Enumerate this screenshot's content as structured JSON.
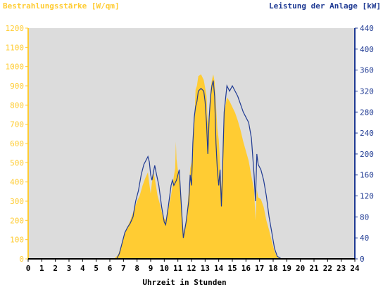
{
  "colors": {
    "background": "#ffffff",
    "plot_background": "#dcdcdc",
    "irradiance": "#ffcc33",
    "power": "#1f3a93",
    "axis_left": "#ffcc33",
    "axis_right": "#1f3a93",
    "axis_bottom": "#000000"
  },
  "chart_data": {
    "type": "area",
    "title_left": "Bestrahlungsstärke [W/qm]",
    "title_right": "Leistung der Anlage [kW]",
    "xlabel": "Uhrzeit in Stunden",
    "xlim": [
      0,
      24
    ],
    "x_ticks": [
      0,
      1,
      2,
      3,
      4,
      5,
      6,
      7,
      8,
      9,
      10,
      11,
      12,
      13,
      14,
      15,
      16,
      17,
      18,
      19,
      20,
      21,
      22,
      23,
      24
    ],
    "y_left": {
      "lim": [
        0,
        1200
      ],
      "ticks": [
        0,
        100,
        200,
        300,
        400,
        500,
        600,
        700,
        800,
        900,
        1000,
        1100,
        1200
      ]
    },
    "y_right": {
      "lim": [
        0,
        440
      ],
      "ticks": [
        0,
        40,
        80,
        120,
        160,
        200,
        240,
        280,
        320,
        360,
        400,
        440
      ]
    },
    "grid": false,
    "series": [
      {
        "axis": "left",
        "style": "area",
        "points": [
          [
            0,
            0
          ],
          [
            6.3,
            0
          ],
          [
            6.6,
            20
          ],
          [
            6.8,
            60
          ],
          [
            7.0,
            110
          ],
          [
            7.2,
            150
          ],
          [
            7.5,
            200
          ],
          [
            7.8,
            260
          ],
          [
            8.0,
            300
          ],
          [
            8.2,
            330
          ],
          [
            8.4,
            380
          ],
          [
            8.6,
            420
          ],
          [
            8.8,
            450
          ],
          [
            8.9,
            390
          ],
          [
            9.0,
            340
          ],
          [
            9.1,
            400
          ],
          [
            9.2,
            450
          ],
          [
            9.3,
            420
          ],
          [
            9.5,
            330
          ],
          [
            9.7,
            280
          ],
          [
            9.9,
            220
          ],
          [
            10.1,
            200
          ],
          [
            10.3,
            260
          ],
          [
            10.5,
            330
          ],
          [
            10.6,
            380
          ],
          [
            10.7,
            430
          ],
          [
            10.8,
            470
          ],
          [
            10.85,
            610
          ],
          [
            10.9,
            520
          ],
          [
            11.0,
            460
          ],
          [
            11.1,
            420
          ],
          [
            11.2,
            360
          ],
          [
            11.4,
            130
          ],
          [
            11.6,
            200
          ],
          [
            11.8,
            350
          ],
          [
            11.9,
            470
          ],
          [
            12.0,
            500
          ],
          [
            12.1,
            560
          ],
          [
            12.2,
            700
          ],
          [
            12.3,
            880
          ],
          [
            12.4,
            900
          ],
          [
            12.5,
            950
          ],
          [
            12.7,
            960
          ],
          [
            12.9,
            930
          ],
          [
            13.1,
            850
          ],
          [
            13.2,
            700
          ],
          [
            13.3,
            750
          ],
          [
            13.4,
            880
          ],
          [
            13.5,
            930
          ],
          [
            13.6,
            960
          ],
          [
            13.7,
            920
          ],
          [
            13.8,
            800
          ],
          [
            13.9,
            680
          ],
          [
            14.0,
            620
          ],
          [
            14.1,
            500
          ],
          [
            14.2,
            360
          ],
          [
            14.3,
            620
          ],
          [
            14.4,
            760
          ],
          [
            14.6,
            840
          ],
          [
            14.8,
            820
          ],
          [
            15.0,
            790
          ],
          [
            15.2,
            760
          ],
          [
            15.4,
            720
          ],
          [
            15.6,
            670
          ],
          [
            15.8,
            610
          ],
          [
            16.0,
            560
          ],
          [
            16.2,
            510
          ],
          [
            16.4,
            430
          ],
          [
            16.6,
            360
          ],
          [
            16.7,
            200
          ],
          [
            16.8,
            360
          ],
          [
            16.9,
            320
          ],
          [
            17.1,
            310
          ],
          [
            17.3,
            270
          ],
          [
            17.5,
            200
          ],
          [
            17.7,
            150
          ],
          [
            17.9,
            90
          ],
          [
            18.1,
            40
          ],
          [
            18.3,
            10
          ],
          [
            18.5,
            0
          ],
          [
            24,
            0
          ]
        ]
      },
      {
        "axis": "right",
        "style": "line",
        "points": [
          [
            0,
            0
          ],
          [
            6.5,
            0
          ],
          [
            6.7,
            10
          ],
          [
            6.9,
            30
          ],
          [
            7.1,
            50
          ],
          [
            7.3,
            60
          ],
          [
            7.5,
            68
          ],
          [
            7.7,
            80
          ],
          [
            7.9,
            110
          ],
          [
            8.1,
            130
          ],
          [
            8.3,
            160
          ],
          [
            8.5,
            180
          ],
          [
            8.7,
            190
          ],
          [
            8.8,
            195
          ],
          [
            8.9,
            185
          ],
          [
            9.0,
            160
          ],
          [
            9.1,
            150
          ],
          [
            9.2,
            165
          ],
          [
            9.3,
            178
          ],
          [
            9.4,
            165
          ],
          [
            9.6,
            140
          ],
          [
            9.8,
            100
          ],
          [
            10.0,
            70
          ],
          [
            10.1,
            65
          ],
          [
            10.3,
            100
          ],
          [
            10.5,
            140
          ],
          [
            10.6,
            150
          ],
          [
            10.7,
            140
          ],
          [
            10.9,
            150
          ],
          [
            11.1,
            170
          ],
          [
            11.3,
            80
          ],
          [
            11.4,
            40
          ],
          [
            11.6,
            70
          ],
          [
            11.8,
            110
          ],
          [
            11.9,
            160
          ],
          [
            12.0,
            140
          ],
          [
            12.1,
            220
          ],
          [
            12.2,
            270
          ],
          [
            12.3,
            290
          ],
          [
            12.4,
            300
          ],
          [
            12.5,
            320
          ],
          [
            12.7,
            325
          ],
          [
            12.9,
            320
          ],
          [
            13.0,
            300
          ],
          [
            13.1,
            260
          ],
          [
            13.2,
            200
          ],
          [
            13.3,
            270
          ],
          [
            13.4,
            310
          ],
          [
            13.5,
            330
          ],
          [
            13.6,
            340
          ],
          [
            13.7,
            310
          ],
          [
            13.8,
            220
          ],
          [
            13.9,
            170
          ],
          [
            14.0,
            140
          ],
          [
            14.1,
            170
          ],
          [
            14.2,
            100
          ],
          [
            14.3,
            190
          ],
          [
            14.4,
            280
          ],
          [
            14.6,
            330
          ],
          [
            14.8,
            320
          ],
          [
            15.0,
            330
          ],
          [
            15.2,
            320
          ],
          [
            15.4,
            310
          ],
          [
            15.6,
            295
          ],
          [
            15.8,
            280
          ],
          [
            16.0,
            270
          ],
          [
            16.2,
            260
          ],
          [
            16.4,
            230
          ],
          [
            16.6,
            160
          ],
          [
            16.7,
            110
          ],
          [
            16.8,
            200
          ],
          [
            16.9,
            180
          ],
          [
            17.1,
            170
          ],
          [
            17.3,
            150
          ],
          [
            17.5,
            120
          ],
          [
            17.7,
            80
          ],
          [
            17.9,
            50
          ],
          [
            18.1,
            20
          ],
          [
            18.3,
            5
          ],
          [
            18.6,
            0
          ],
          [
            24,
            0
          ]
        ]
      }
    ]
  }
}
